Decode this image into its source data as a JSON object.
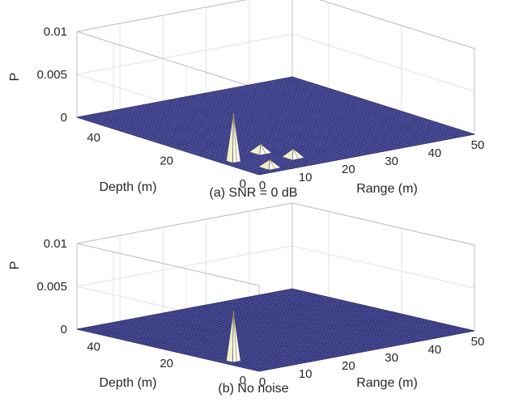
{
  "chart_data": [
    {
      "type": "surface",
      "caption": "(a) SNR = 0 dB",
      "xlabel": "Range (m)",
      "ylabel": "Depth (m)",
      "zlabel": "P",
      "x_ticks": [
        "0",
        "10",
        "20",
        "30",
        "40",
        "50"
      ],
      "y_ticks": [
        "0",
        "20",
        "40"
      ],
      "z_ticks": [
        "0",
        "0.005",
        "0.01"
      ],
      "xlim": [
        0,
        50
      ],
      "ylim": [
        0,
        50
      ],
      "zlim": [
        0,
        0.01
      ],
      "grid": true,
      "surface_color": "#5b5fb0",
      "edge_color": "#2a2a66",
      "peaks": [
        {
          "range": 2.5,
          "depth": 10,
          "value": 0.0056
        },
        {
          "range": 5.0,
          "depth": 3,
          "value": 0.0009
        },
        {
          "range": 10.5,
          "depth": 12,
          "value": 0.001
        },
        {
          "range": 13.0,
          "depth": 6,
          "value": 0.001
        }
      ]
    },
    {
      "type": "surface",
      "caption": "(b) No noise",
      "xlabel": "Range (m)",
      "ylabel": "Depth (m)",
      "zlabel": "P",
      "x_ticks": [
        "0",
        "10",
        "20",
        "30",
        "40",
        "50"
      ],
      "y_ticks": [
        "0",
        "20",
        "40"
      ],
      "z_ticks": [
        "0",
        "0.005",
        "0.01"
      ],
      "xlim": [
        0,
        50
      ],
      "ylim": [
        0,
        50
      ],
      "zlim": [
        0,
        0.01
      ],
      "grid": true,
      "surface_color": "#5b5fb0",
      "edge_color": "#2a2a66",
      "peaks": [
        {
          "range": 2.5,
          "depth": 10,
          "value": 0.0058
        }
      ]
    }
  ]
}
